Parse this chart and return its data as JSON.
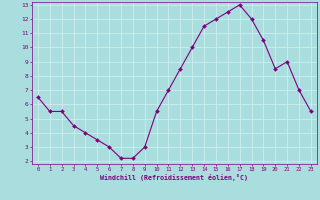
{
  "x": [
    0,
    1,
    2,
    3,
    4,
    5,
    6,
    7,
    8,
    9,
    10,
    11,
    12,
    13,
    14,
    15,
    16,
    17,
    18,
    19,
    20,
    21,
    22,
    23
  ],
  "y": [
    6.5,
    5.5,
    5.5,
    4.5,
    4.0,
    3.5,
    3.0,
    2.2,
    2.2,
    3.0,
    5.5,
    7.0,
    8.5,
    10.0,
    11.5,
    12.0,
    12.5,
    13.0,
    12.0,
    10.5,
    8.5,
    9.0,
    7.0,
    5.5
  ],
  "line_color": "#800080",
  "marker_color": "#800080",
  "bg_color": "#aadddd",
  "grid_color": "#cceeee",
  "xlabel": "Windchill (Refroidissement éolien,°C)",
  "xlabel_color": "#800080",
  "tick_color": "#800080",
  "ylim": [
    1.8,
    13.2
  ],
  "xlim": [
    -0.5,
    23.5
  ],
  "yticks": [
    2,
    3,
    4,
    5,
    6,
    7,
    8,
    9,
    10,
    11,
    12,
    13
  ],
  "xticks": [
    0,
    1,
    2,
    3,
    4,
    5,
    6,
    7,
    8,
    9,
    10,
    11,
    12,
    13,
    14,
    15,
    16,
    17,
    18,
    19,
    20,
    21,
    22,
    23
  ],
  "spine_color": "#800080",
  "figsize": [
    3.2,
    2.0
  ],
  "dpi": 100,
  "bottom_bar_color": "#800080"
}
